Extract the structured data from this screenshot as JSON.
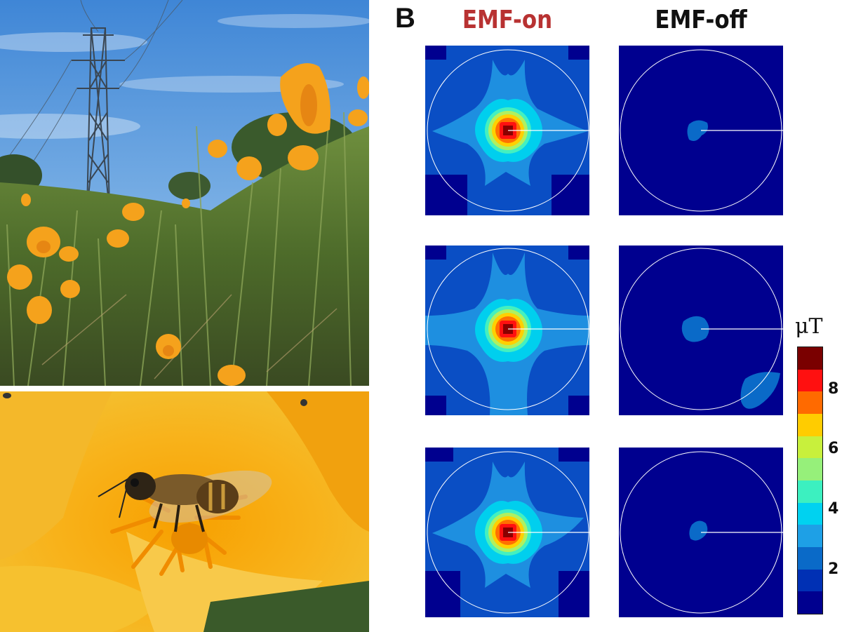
{
  "panel_b": {
    "letter": "B",
    "col_on": "EMF-on",
    "col_off": "EMF-off",
    "col_on_color": "#b83232",
    "col_off_color": "#111111"
  },
  "colorbar": {
    "unit": "μT",
    "ticks": [
      "8",
      "6",
      "4",
      "2"
    ],
    "colors": [
      "#7a0000",
      "#ff1010",
      "#ff6a00",
      "#ffcc00",
      "#c8f03c",
      "#96f07a",
      "#3cf0c0",
      "#00d2f0",
      "#1ea0e6",
      "#0a6ac8",
      "#0030b4",
      "#00008f"
    ]
  },
  "photos": {
    "top": "poppies-power-line-photo",
    "bottom": "bee-on-poppy-photo"
  }
}
